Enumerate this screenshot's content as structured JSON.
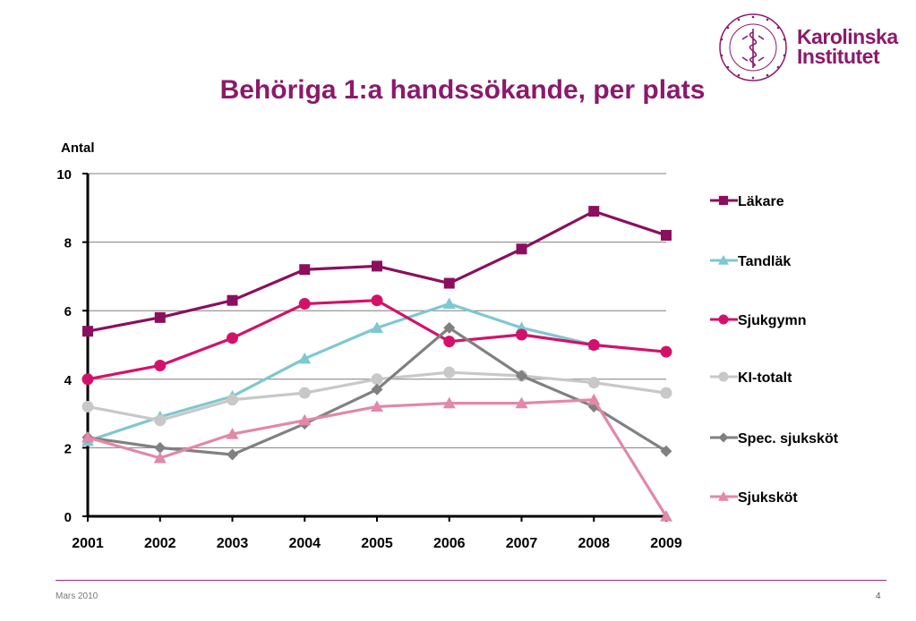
{
  "slide": {
    "title": "Behöriga 1:a handssökande, per plats",
    "footer_date": "Mars 2010",
    "page_number": "4"
  },
  "logo": {
    "name_line1": "Karolinska",
    "name_line2": "Institutet",
    "seal_text": "KAROLINSKA INSTITUTET · ANNO 1810"
  },
  "colors": {
    "brand": "#8b1a6b",
    "lakare": "#8b0f5e",
    "tandlak": "#7ec8d0",
    "sjukgymn": "#d4116a",
    "ki_totalt": "#c8c8c8",
    "spec_sjukskot": "#808080",
    "sjukskot": "#e288a8"
  },
  "chart_data": {
    "type": "line",
    "title": "",
    "xlabel": "",
    "ylabel": "Antal",
    "x": [
      "2001",
      "2002",
      "2003",
      "2004",
      "2005",
      "2006",
      "2007",
      "2008",
      "2009"
    ],
    "ylim": [
      0,
      10
    ],
    "yticks": [
      "0",
      "2",
      "4",
      "6",
      "8",
      "10"
    ],
    "grid": "horizontal",
    "legend_position": "right",
    "series": [
      {
        "name": "Läkare",
        "color": "#8b0f5e",
        "marker": "square",
        "values": [
          5.4,
          5.8,
          6.3,
          7.2,
          7.3,
          6.8,
          7.8,
          8.9,
          8.2
        ]
      },
      {
        "name": "Tandläk",
        "color": "#7ec8d0",
        "marker": "triangle",
        "values": [
          2.2,
          2.9,
          3.5,
          4.6,
          5.5,
          6.2,
          5.5,
          5.0,
          null
        ]
      },
      {
        "name": "Sjukgymn",
        "color": "#d4116a",
        "marker": "circle",
        "values": [
          4.0,
          4.4,
          5.2,
          6.2,
          6.3,
          5.1,
          5.3,
          5.0,
          4.8
        ]
      },
      {
        "name": "KI-totalt",
        "color": "#c8c8c8",
        "marker": "circle",
        "values": [
          3.2,
          2.8,
          3.4,
          3.6,
          4.0,
          4.2,
          4.1,
          3.9,
          3.6
        ]
      },
      {
        "name": "Spec. sjuksköt",
        "color": "#808080",
        "marker": "diamond",
        "values": [
          2.3,
          2.0,
          1.8,
          2.7,
          3.7,
          5.5,
          4.1,
          3.2,
          1.9
        ]
      },
      {
        "name": "Sjuksköt",
        "color": "#e288a8",
        "marker": "triangle",
        "values": [
          2.3,
          1.7,
          2.4,
          2.8,
          3.2,
          3.3,
          3.3,
          3.4,
          0.0
        ]
      }
    ]
  }
}
